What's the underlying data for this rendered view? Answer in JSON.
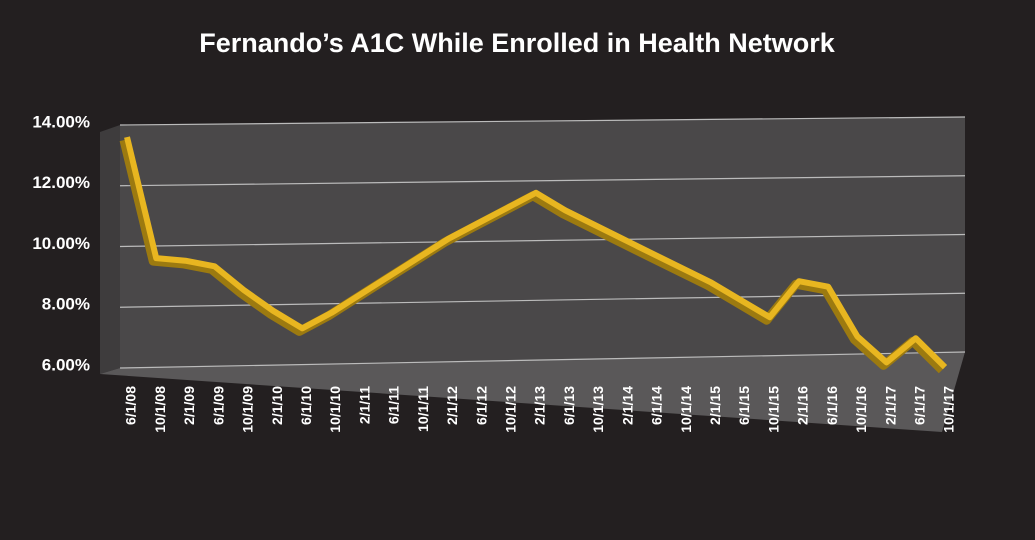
{
  "chart_data": {
    "type": "line",
    "title": "Fernando’s A1C While Enrolled in Health Network",
    "categories": [
      "6/1/08",
      "10/1/08",
      "2/1/09",
      "6/1/09",
      "10/1/09",
      "2/1/10",
      "6/1/10",
      "10/1/10",
      "2/1/11",
      "6/1/11",
      "10/1/11",
      "2/1/12",
      "6/1/12",
      "10/1/12",
      "2/1/13",
      "6/1/13",
      "10/1/13",
      "2/1/14",
      "6/1/14",
      "10/1/14",
      "2/1/15",
      "6/1/15",
      "10/1/15",
      "2/1/16",
      "6/1/16",
      "10/1/16",
      "2/1/17",
      "6/1/17",
      "10/1/17"
    ],
    "series": [
      {
        "name": "A1C",
        "color": "#e8b620",
        "values": [
          13.6,
          9.6,
          9.5,
          9.3,
          8.5,
          7.8,
          7.2,
          7.7,
          8.3,
          8.9,
          9.5,
          10.1,
          10.6,
          11.1,
          11.6,
          11.0,
          10.5,
          10.0,
          9.5,
          9.0,
          8.5,
          7.9,
          7.3,
          8.5,
          8.3,
          6.6,
          5.7,
          6.5,
          5.5
        ]
      }
    ],
    "ylim": [
      6,
      14
    ],
    "yticks": [
      {
        "value": 6,
        "label": "6.00%"
      },
      {
        "value": 8,
        "label": "8.00%"
      },
      {
        "value": 10,
        "label": "10.00%"
      },
      {
        "value": 12,
        "label": "12.00%"
      },
      {
        "value": 14,
        "label": "14.00%"
      }
    ],
    "grid": true
  }
}
